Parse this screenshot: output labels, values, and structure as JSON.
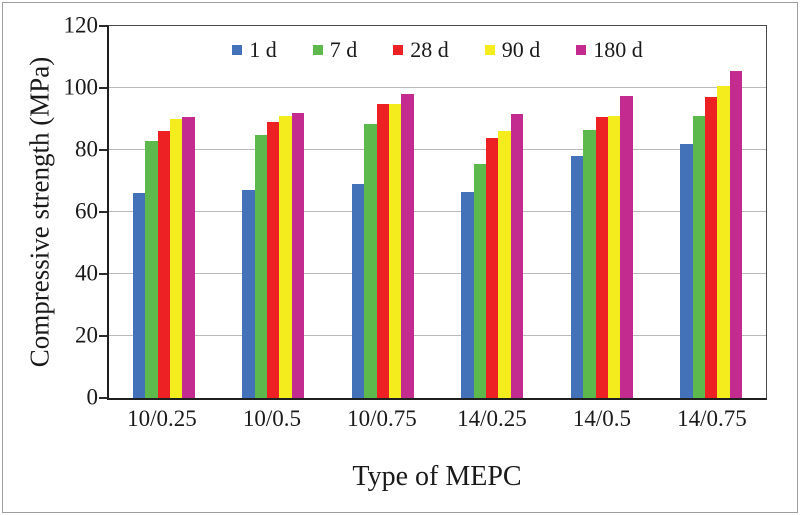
{
  "chart_data": {
    "type": "bar",
    "title": "",
    "xlabel": "Type of MEPC",
    "ylabel": "Compressive strength (MPa)",
    "ylim": [
      0,
      120
    ],
    "yticks": [
      0,
      20,
      40,
      60,
      80,
      100,
      120
    ],
    "grid": "horizontal",
    "legend_position": "top-center-inside",
    "axis_color": "#1f1f1f",
    "grid_color": "#b9b9b9",
    "categories": [
      "10/0.25",
      "10/0.5",
      "10/0.75",
      "14/0.25",
      "14/0.5",
      "14/0.75"
    ],
    "series": [
      {
        "name": "1 d",
        "color": "#4472b8",
        "values": [
          66,
          67,
          69,
          66.5,
          78,
          82
        ]
      },
      {
        "name": "7 d",
        "color": "#5db94c",
        "values": [
          83,
          85,
          88.5,
          75.5,
          86.5,
          91
        ]
      },
      {
        "name": "28 d",
        "color": "#ed2024",
        "values": [
          86,
          89,
          95,
          84,
          90.5,
          97
        ]
      },
      {
        "name": "90 d",
        "color": "#f5ec1d",
        "values": [
          90,
          91,
          95,
          86,
          91,
          100.5
        ]
      },
      {
        "name": "180 d",
        "color": "#c32b8f",
        "values": [
          90.5,
          92,
          98,
          91.5,
          97.5,
          105.5
        ]
      }
    ]
  }
}
